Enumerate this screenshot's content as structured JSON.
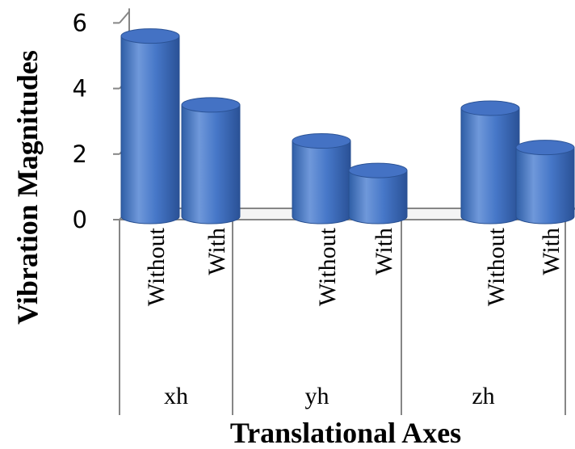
{
  "chart_data": {
    "type": "bar",
    "style": "3d-cylinder",
    "xlabel": "Translational Axes",
    "ylabel": "Vibration Magnitudes",
    "ylim": [
      0,
      6
    ],
    "yticks": [
      0,
      2,
      4,
      6
    ],
    "groups": [
      {
        "name": "xh",
        "bars": [
          {
            "label": "Without",
            "value": 5.6
          },
          {
            "label": "With",
            "value": 3.5
          }
        ]
      },
      {
        "name": "yh",
        "bars": [
          {
            "label": "Without",
            "value": 2.4
          },
          {
            "label": "With",
            "value": 1.5
          }
        ]
      },
      {
        "name": "zh",
        "bars": [
          {
            "label": "Without",
            "value": 3.4
          },
          {
            "label": "With",
            "value": 2.2
          }
        ]
      }
    ],
    "colors": {
      "bar": "#4472c4",
      "bar_dark": "#2c5597",
      "bar_light": "#7aa0dd",
      "axis": "#868686"
    }
  }
}
